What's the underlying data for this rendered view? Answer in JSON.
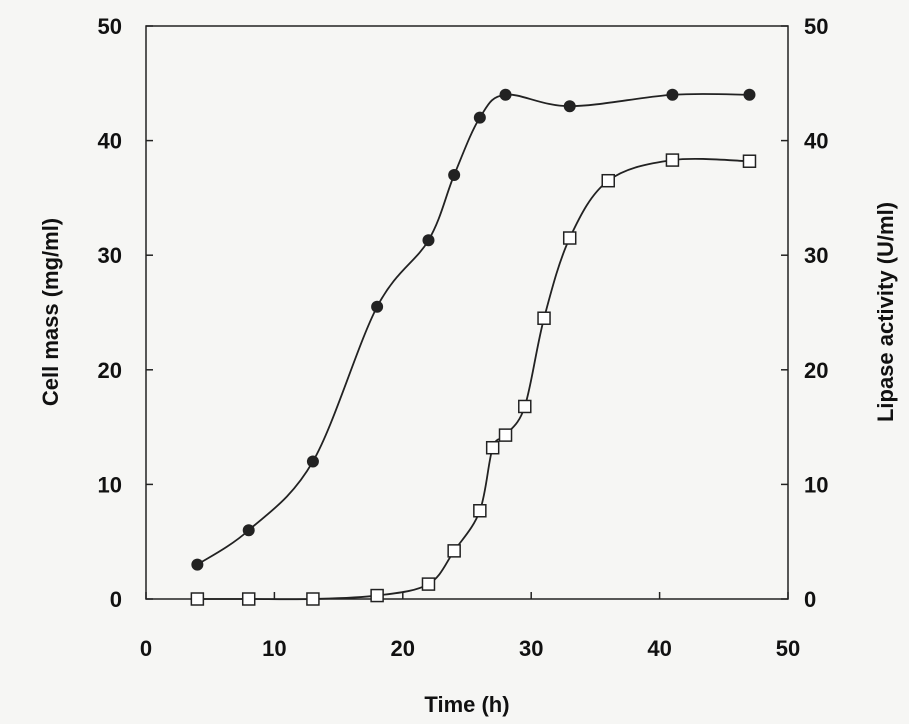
{
  "chart_data": {
    "type": "line",
    "xlabel": "Time (h)",
    "ylabel": "Cell mass (mg/ml)",
    "y2label": "Lipase activity (U/ml)",
    "xlim": [
      0,
      50
    ],
    "ylim": [
      0,
      50
    ],
    "y2lim": [
      0,
      50
    ],
    "xticks": [
      0,
      10,
      20,
      30,
      40,
      50
    ],
    "yticks": [
      0,
      10,
      20,
      30,
      40,
      50
    ],
    "y2ticks": [
      0,
      10,
      20,
      30,
      40,
      50
    ],
    "grid": false,
    "series": [
      {
        "marker": "filled-circle",
        "axis": "left",
        "color": "#222222",
        "x": [
          4,
          8,
          13,
          18,
          22,
          24,
          26,
          28,
          33,
          41,
          47
        ],
        "y": [
          3,
          6,
          12,
          25.5,
          31.3,
          37,
          42,
          44,
          43,
          44,
          44
        ]
      },
      {
        "marker": "open-square",
        "axis": "right",
        "color": "#222222",
        "x": [
          4,
          8,
          13,
          18,
          22,
          24,
          26,
          27,
          28,
          29.5,
          31,
          33,
          36,
          41,
          47
        ],
        "y": [
          0,
          0,
          0,
          0.3,
          1.3,
          4.2,
          7.7,
          13.2,
          14.3,
          16.8,
          24.5,
          31.5,
          36.5,
          38.3,
          38.2
        ]
      }
    ]
  }
}
